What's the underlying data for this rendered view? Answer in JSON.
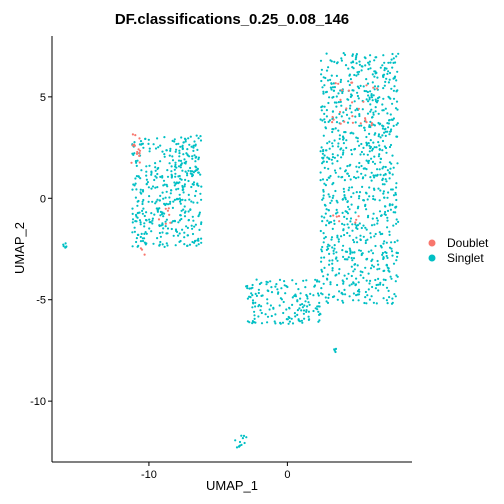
{
  "chart_data": {
    "type": "scatter",
    "title": "DF.classifications_0.25_0.08_146",
    "xlabel": "UMAP_1",
    "ylabel": "UMAP_2",
    "xlim": [
      -17,
      9
    ],
    "ylim": [
      -13,
      8
    ],
    "x_ticks": [
      {
        "value": -10,
        "label": "-10"
      },
      {
        "value": 0,
        "label": "0"
      }
    ],
    "y_ticks": [
      {
        "value": 5,
        "label": "5"
      },
      {
        "value": 0,
        "label": "0"
      },
      {
        "value": -5,
        "label": "-5"
      },
      {
        "value": -10,
        "label": "-10"
      }
    ],
    "grid": false,
    "legend_position": "right",
    "series": [
      {
        "name": "Doublet",
        "color": "#F8766D"
      },
      {
        "name": "Singlet",
        "color": "#00BFC4"
      }
    ],
    "clusters": [
      {
        "series": "Singlet",
        "x": [
          -11.2,
          -6.2
        ],
        "y": [
          -2.4,
          3.1
        ],
        "count": 430
      },
      {
        "series": "Singlet",
        "x": [
          2.4,
          8.0
        ],
        "y": [
          -5.2,
          7.2
        ],
        "count": 900
      },
      {
        "series": "Singlet",
        "x": [
          -3.0,
          2.5
        ],
        "y": [
          -6.2,
          -4.0
        ],
        "count": 160
      },
      {
        "series": "Singlet",
        "x": [
          -16.3,
          -15.9
        ],
        "y": [
          -2.5,
          -2.2
        ],
        "count": 6
      },
      {
        "series": "Singlet",
        "x": [
          -3.9,
          -2.9
        ],
        "y": [
          -12.3,
          -11.6
        ],
        "count": 12
      },
      {
        "series": "Singlet",
        "x": [
          3.3,
          3.6
        ],
        "y": [
          -7.6,
          -7.3
        ],
        "count": 4
      },
      {
        "series": "Singlet",
        "x": [
          -2.7,
          -2.4
        ],
        "y": [
          -4.9,
          -4.4
        ],
        "count": 4
      },
      {
        "series": "Doublet",
        "x": [
          3.0,
          6.5
        ],
        "y": [
          3.6,
          6.0
        ],
        "count": 28
      },
      {
        "series": "Doublet",
        "x": [
          -11.3,
          -10.6
        ],
        "y": [
          1.6,
          3.2
        ],
        "count": 14
      },
      {
        "series": "Doublet",
        "x": [
          -9.3,
          -8.2
        ],
        "y": [
          -1.3,
          -0.4
        ],
        "count": 7
      },
      {
        "series": "Doublet",
        "x": [
          3.2,
          5.3
        ],
        "y": [
          -1.2,
          -0.6
        ],
        "count": 7
      },
      {
        "series": "Doublet",
        "x": [
          -10.7,
          -10.3
        ],
        "y": [
          -2.8,
          -2.2
        ],
        "count": 3
      }
    ]
  }
}
